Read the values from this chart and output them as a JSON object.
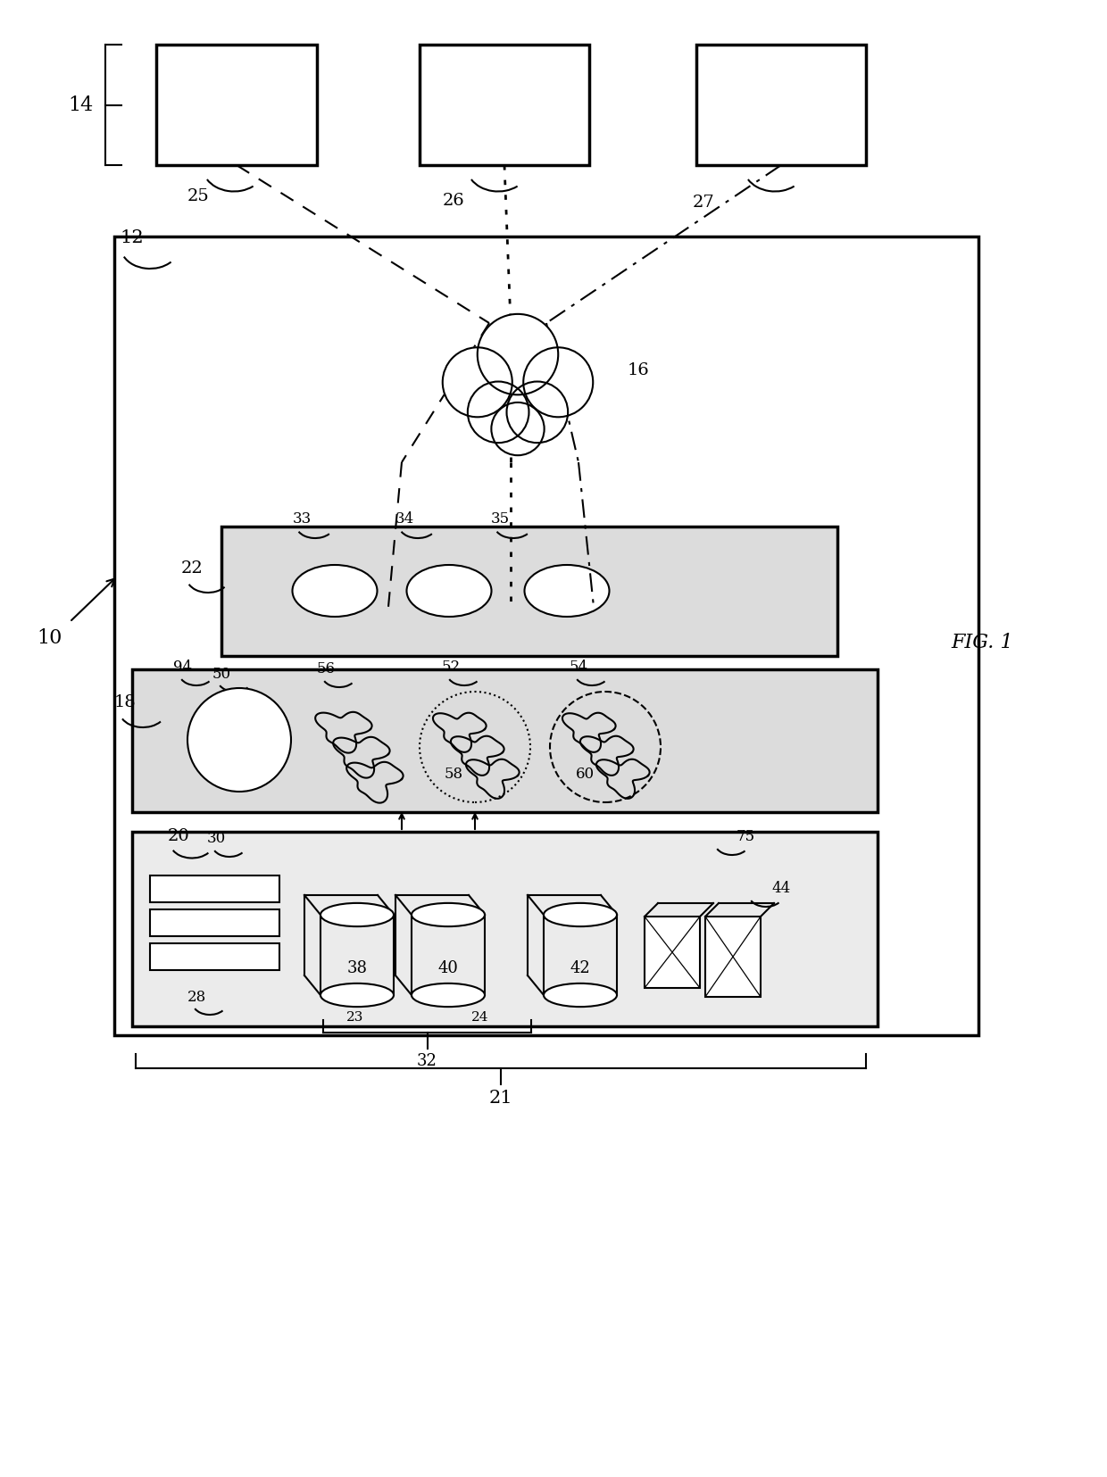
{
  "title": "FIG. 1",
  "background": "#ffffff",
  "line_color": "#000000",
  "fig_width": 12.4,
  "fig_height": 16.55,
  "dpi": 100
}
